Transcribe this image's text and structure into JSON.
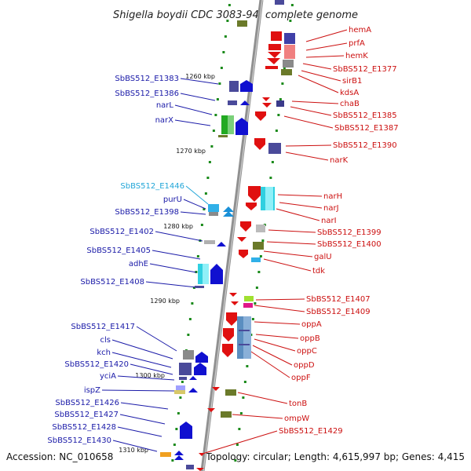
{
  "title": "Shigella boydii CDC 3083-94, complete genome",
  "footer": {
    "accession": "Accession: NC_010658",
    "topology": "Topology: circular; Length: 4,615,997 bp; Genes: 4,415"
  },
  "colors": {
    "left_labels": "#1a1aa8",
    "highlight_label": "#22a6d8",
    "right_labels": "#cc1010"
  },
  "kbp_ticks": [
    "1260 kbp",
    "1270 kbp",
    "1280 kbp",
    "1290 kbp",
    "1300 kbp",
    "1310 kbp"
  ],
  "left_labels": [
    "SbBS512_E1383",
    "SbBS512_E1386",
    "narL",
    "narX",
    "SbBS512_E1446",
    "purU",
    "SbBS512_E1398",
    "SbBS512_E1402",
    "SbBS512_E1405",
    "adhE",
    "SbBS512_E1408",
    "SbBS512_E1417",
    "cls",
    "kch",
    "SbBS512_E1420",
    "yciA",
    "ispZ",
    "SbBS512_E1426",
    "SbBS512_E1427",
    "SbBS512_E1428",
    "SbBS512_E1430"
  ],
  "right_labels": [
    "hemA",
    "prfA",
    "hemK",
    "SbBS512_E1377",
    "sirB1",
    "kdsA",
    "chaB",
    "SbBS512_E1385",
    "SbBS512_E1387",
    "SbBS512_E1390",
    "narK",
    "narH",
    "narJ",
    "narI",
    "SbBS512_E1399",
    "SbBS512_E1400",
    "galU",
    "tdk",
    "SbBS512_E1407",
    "SbBS512_E1409",
    "oppA",
    "oppB",
    "oppC",
    "oppD",
    "oppF",
    "tonB",
    "ompW",
    "SbBS512_E1429"
  ]
}
